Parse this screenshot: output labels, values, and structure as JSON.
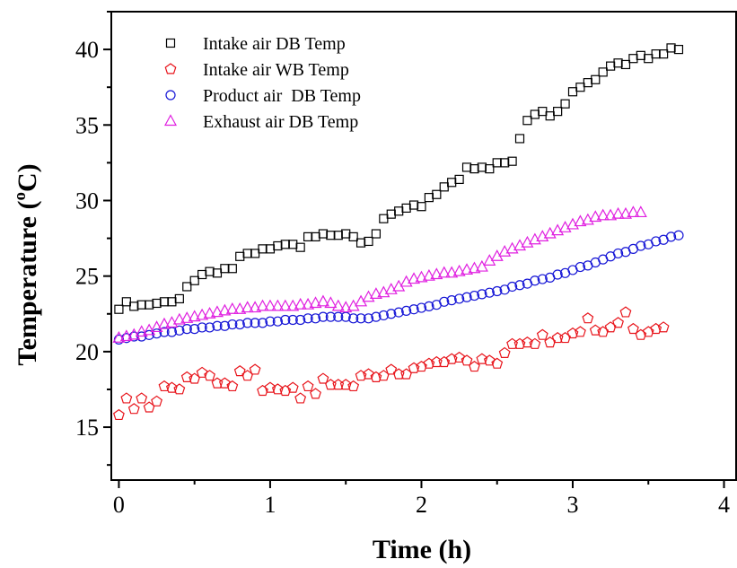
{
  "chart_data": {
    "type": "scatter",
    "xlabel": "Time (h)",
    "ylabel": {
      "prefix": "Temperature (",
      "sup": "o",
      "suffix": "C)"
    },
    "xlim": [
      -0.05,
      4.08
    ],
    "ylim": [
      11.5,
      42.5
    ],
    "x_ticks": [
      0,
      1,
      2,
      3,
      4
    ],
    "y_ticks": [
      15,
      20,
      25,
      30,
      35,
      40
    ],
    "legend_position": "top-left",
    "series": [
      {
        "name": "Intake air DB Temp",
        "marker": "square",
        "color": "#000000",
        "points": [
          [
            0,
            22.8
          ],
          [
            0.05,
            23.3
          ],
          [
            0.1,
            23.0
          ],
          [
            0.15,
            23.1
          ],
          [
            0.2,
            23.1
          ],
          [
            0.25,
            23.2
          ],
          [
            0.3,
            23.3
          ],
          [
            0.35,
            23.3
          ],
          [
            0.4,
            23.5
          ],
          [
            0.45,
            24.3
          ],
          [
            0.5,
            24.7
          ],
          [
            0.55,
            25.1
          ],
          [
            0.6,
            25.3
          ],
          [
            0.65,
            25.2
          ],
          [
            0.7,
            25.5
          ],
          [
            0.75,
            25.5
          ],
          [
            0.8,
            26.3
          ],
          [
            0.85,
            26.5
          ],
          [
            0.9,
            26.5
          ],
          [
            0.95,
            26.8
          ],
          [
            1.0,
            26.8
          ],
          [
            1.05,
            27.0
          ],
          [
            1.1,
            27.1
          ],
          [
            1.15,
            27.1
          ],
          [
            1.2,
            26.9
          ],
          [
            1.25,
            27.6
          ],
          [
            1.3,
            27.6
          ],
          [
            1.35,
            27.8
          ],
          [
            1.4,
            27.7
          ],
          [
            1.45,
            27.7
          ],
          [
            1.5,
            27.8
          ],
          [
            1.55,
            27.6
          ],
          [
            1.6,
            27.2
          ],
          [
            1.65,
            27.3
          ],
          [
            1.7,
            27.8
          ],
          [
            1.75,
            28.8
          ],
          [
            1.8,
            29.1
          ],
          [
            1.85,
            29.3
          ],
          [
            1.9,
            29.5
          ],
          [
            1.95,
            29.7
          ],
          [
            2.0,
            29.6
          ],
          [
            2.05,
            30.2
          ],
          [
            2.1,
            30.4
          ],
          [
            2.15,
            30.9
          ],
          [
            2.2,
            31.2
          ],
          [
            2.25,
            31.4
          ],
          [
            2.3,
            32.2
          ],
          [
            2.35,
            32.1
          ],
          [
            2.4,
            32.2
          ],
          [
            2.45,
            32.1
          ],
          [
            2.5,
            32.5
          ],
          [
            2.55,
            32.5
          ],
          [
            2.6,
            32.6
          ],
          [
            2.65,
            34.1
          ],
          [
            2.7,
            35.3
          ],
          [
            2.75,
            35.7
          ],
          [
            2.8,
            35.9
          ],
          [
            2.85,
            35.6
          ],
          [
            2.9,
            35.9
          ],
          [
            2.95,
            36.4
          ],
          [
            3.0,
            37.2
          ],
          [
            3.05,
            37.5
          ],
          [
            3.1,
            37.8
          ],
          [
            3.15,
            38.0
          ],
          [
            3.2,
            38.5
          ],
          [
            3.25,
            38.9
          ],
          [
            3.3,
            39.1
          ],
          [
            3.35,
            39.0
          ],
          [
            3.4,
            39.4
          ],
          [
            3.45,
            39.6
          ],
          [
            3.5,
            39.4
          ],
          [
            3.55,
            39.7
          ],
          [
            3.6,
            39.7
          ],
          [
            3.65,
            40.1
          ],
          [
            3.7,
            40.0
          ]
        ]
      },
      {
        "name": "Intake air WB Temp",
        "marker": "pentagon",
        "color": "#e8141b",
        "points": [
          [
            0,
            15.8
          ],
          [
            0.05,
            16.9
          ],
          [
            0.1,
            16.2
          ],
          [
            0.15,
            16.9
          ],
          [
            0.2,
            16.3
          ],
          [
            0.25,
            16.7
          ],
          [
            0.3,
            17.7
          ],
          [
            0.35,
            17.6
          ],
          [
            0.4,
            17.5
          ],
          [
            0.45,
            18.3
          ],
          [
            0.5,
            18.2
          ],
          [
            0.55,
            18.6
          ],
          [
            0.6,
            18.4
          ],
          [
            0.65,
            17.9
          ],
          [
            0.7,
            17.9
          ],
          [
            0.75,
            17.7
          ],
          [
            0.8,
            18.7
          ],
          [
            0.85,
            18.4
          ],
          [
            0.9,
            18.8
          ],
          [
            0.95,
            17.4
          ],
          [
            1.0,
            17.6
          ],
          [
            1.05,
            17.5
          ],
          [
            1.1,
            17.4
          ],
          [
            1.15,
            17.6
          ],
          [
            1.2,
            16.9
          ],
          [
            1.25,
            17.7
          ],
          [
            1.3,
            17.2
          ],
          [
            1.35,
            18.2
          ],
          [
            1.4,
            17.8
          ],
          [
            1.45,
            17.8
          ],
          [
            1.5,
            17.8
          ],
          [
            1.55,
            17.7
          ],
          [
            1.6,
            18.4
          ],
          [
            1.65,
            18.5
          ],
          [
            1.7,
            18.3
          ],
          [
            1.75,
            18.4
          ],
          [
            1.8,
            18.8
          ],
          [
            1.85,
            18.5
          ],
          [
            1.9,
            18.5
          ],
          [
            1.95,
            18.9
          ],
          [
            2.0,
            19.0
          ],
          [
            2.05,
            19.2
          ],
          [
            2.1,
            19.3
          ],
          [
            2.15,
            19.3
          ],
          [
            2.2,
            19.5
          ],
          [
            2.25,
            19.6
          ],
          [
            2.3,
            19.4
          ],
          [
            2.35,
            19.0
          ],
          [
            2.4,
            19.5
          ],
          [
            2.45,
            19.4
          ],
          [
            2.5,
            19.2
          ],
          [
            2.55,
            19.9
          ],
          [
            2.6,
            20.5
          ],
          [
            2.65,
            20.5
          ],
          [
            2.7,
            20.6
          ],
          [
            2.75,
            20.5
          ],
          [
            2.8,
            21.1
          ],
          [
            2.85,
            20.6
          ],
          [
            2.9,
            20.9
          ],
          [
            2.95,
            20.9
          ],
          [
            3.0,
            21.2
          ],
          [
            3.05,
            21.3
          ],
          [
            3.1,
            22.2
          ],
          [
            3.15,
            21.4
          ],
          [
            3.2,
            21.3
          ],
          [
            3.25,
            21.6
          ],
          [
            3.3,
            21.9
          ],
          [
            3.35,
            22.6
          ],
          [
            3.4,
            21.5
          ],
          [
            3.45,
            21.1
          ],
          [
            3.5,
            21.3
          ],
          [
            3.55,
            21.5
          ],
          [
            3.6,
            21.6
          ]
        ]
      },
      {
        "name": "Product air  DB Temp",
        "marker": "circle",
        "color": "#1616d6",
        "points": [
          [
            0,
            20.8
          ],
          [
            0.05,
            20.9
          ],
          [
            0.1,
            21.0
          ],
          [
            0.15,
            21.0
          ],
          [
            0.2,
            21.1
          ],
          [
            0.25,
            21.2
          ],
          [
            0.3,
            21.3
          ],
          [
            0.35,
            21.3
          ],
          [
            0.4,
            21.4
          ],
          [
            0.45,
            21.5
          ],
          [
            0.5,
            21.5
          ],
          [
            0.55,
            21.6
          ],
          [
            0.6,
            21.6
          ],
          [
            0.65,
            21.7
          ],
          [
            0.7,
            21.7
          ],
          [
            0.75,
            21.8
          ],
          [
            0.8,
            21.8
          ],
          [
            0.85,
            21.9
          ],
          [
            0.9,
            21.9
          ],
          [
            0.95,
            21.9
          ],
          [
            1.0,
            22.0
          ],
          [
            1.05,
            22.0
          ],
          [
            1.1,
            22.1
          ],
          [
            1.15,
            22.1
          ],
          [
            1.2,
            22.1
          ],
          [
            1.25,
            22.2
          ],
          [
            1.3,
            22.2
          ],
          [
            1.35,
            22.3
          ],
          [
            1.4,
            22.3
          ],
          [
            1.45,
            22.3
          ],
          [
            1.5,
            22.3
          ],
          [
            1.55,
            22.2
          ],
          [
            1.6,
            22.2
          ],
          [
            1.65,
            22.2
          ],
          [
            1.7,
            22.3
          ],
          [
            1.75,
            22.4
          ],
          [
            1.8,
            22.5
          ],
          [
            1.85,
            22.6
          ],
          [
            1.9,
            22.7
          ],
          [
            1.95,
            22.8
          ],
          [
            2.0,
            22.9
          ],
          [
            2.05,
            23.0
          ],
          [
            2.1,
            23.1
          ],
          [
            2.15,
            23.3
          ],
          [
            2.2,
            23.4
          ],
          [
            2.25,
            23.5
          ],
          [
            2.3,
            23.6
          ],
          [
            2.35,
            23.7
          ],
          [
            2.4,
            23.8
          ],
          [
            2.45,
            23.9
          ],
          [
            2.5,
            24.0
          ],
          [
            2.55,
            24.1
          ],
          [
            2.6,
            24.3
          ],
          [
            2.65,
            24.4
          ],
          [
            2.7,
            24.5
          ],
          [
            2.75,
            24.7
          ],
          [
            2.8,
            24.8
          ],
          [
            2.85,
            24.9
          ],
          [
            2.9,
            25.1
          ],
          [
            2.95,
            25.2
          ],
          [
            3.0,
            25.4
          ],
          [
            3.05,
            25.6
          ],
          [
            3.1,
            25.7
          ],
          [
            3.15,
            25.9
          ],
          [
            3.2,
            26.1
          ],
          [
            3.25,
            26.3
          ],
          [
            3.3,
            26.5
          ],
          [
            3.35,
            26.6
          ],
          [
            3.4,
            26.8
          ],
          [
            3.45,
            27.0
          ],
          [
            3.5,
            27.1
          ],
          [
            3.55,
            27.3
          ],
          [
            3.6,
            27.4
          ],
          [
            3.65,
            27.6
          ],
          [
            3.7,
            27.7
          ]
        ]
      },
      {
        "name": "Exhaust air DB Temp",
        "marker": "triangle",
        "color": "#e020e0",
        "points": [
          [
            0,
            20.9
          ],
          [
            0.05,
            21.0
          ],
          [
            0.1,
            21.1
          ],
          [
            0.15,
            21.3
          ],
          [
            0.2,
            21.4
          ],
          [
            0.25,
            21.6
          ],
          [
            0.3,
            21.8
          ],
          [
            0.35,
            21.9
          ],
          [
            0.4,
            22.1
          ],
          [
            0.45,
            22.2
          ],
          [
            0.5,
            22.3
          ],
          [
            0.55,
            22.4
          ],
          [
            0.6,
            22.5
          ],
          [
            0.65,
            22.6
          ],
          [
            0.7,
            22.7
          ],
          [
            0.75,
            22.8
          ],
          [
            0.8,
            22.8
          ],
          [
            0.85,
            22.9
          ],
          [
            0.9,
            22.9
          ],
          [
            0.95,
            23.0
          ],
          [
            1.0,
            23.0
          ],
          [
            1.05,
            23.0
          ],
          [
            1.1,
            23.0
          ],
          [
            1.15,
            23.0
          ],
          [
            1.2,
            23.1
          ],
          [
            1.25,
            23.1
          ],
          [
            1.3,
            23.2
          ],
          [
            1.35,
            23.3
          ],
          [
            1.4,
            23.2
          ],
          [
            1.45,
            23.0
          ],
          [
            1.5,
            22.9
          ],
          [
            1.55,
            23.0
          ],
          [
            1.6,
            23.3
          ],
          [
            1.65,
            23.6
          ],
          [
            1.7,
            23.8
          ],
          [
            1.75,
            23.9
          ],
          [
            1.8,
            24.1
          ],
          [
            1.85,
            24.3
          ],
          [
            1.9,
            24.6
          ],
          [
            1.95,
            24.8
          ],
          [
            2.0,
            24.9
          ],
          [
            2.05,
            25.0
          ],
          [
            2.1,
            25.1
          ],
          [
            2.15,
            25.2
          ],
          [
            2.2,
            25.2
          ],
          [
            2.25,
            25.3
          ],
          [
            2.3,
            25.4
          ],
          [
            2.35,
            25.5
          ],
          [
            2.4,
            25.6
          ],
          [
            2.45,
            26.0
          ],
          [
            2.5,
            26.3
          ],
          [
            2.55,
            26.6
          ],
          [
            2.6,
            26.8
          ],
          [
            2.65,
            27.0
          ],
          [
            2.7,
            27.2
          ],
          [
            2.75,
            27.4
          ],
          [
            2.8,
            27.6
          ],
          [
            2.85,
            27.8
          ],
          [
            2.9,
            28.0
          ],
          [
            2.95,
            28.2
          ],
          [
            3.0,
            28.4
          ],
          [
            3.05,
            28.6
          ],
          [
            3.1,
            28.7
          ],
          [
            3.15,
            28.9
          ],
          [
            3.2,
            29.0
          ],
          [
            3.25,
            29.0
          ],
          [
            3.3,
            29.1
          ],
          [
            3.35,
            29.1
          ],
          [
            3.4,
            29.2
          ],
          [
            3.45,
            29.2
          ]
        ]
      }
    ]
  }
}
